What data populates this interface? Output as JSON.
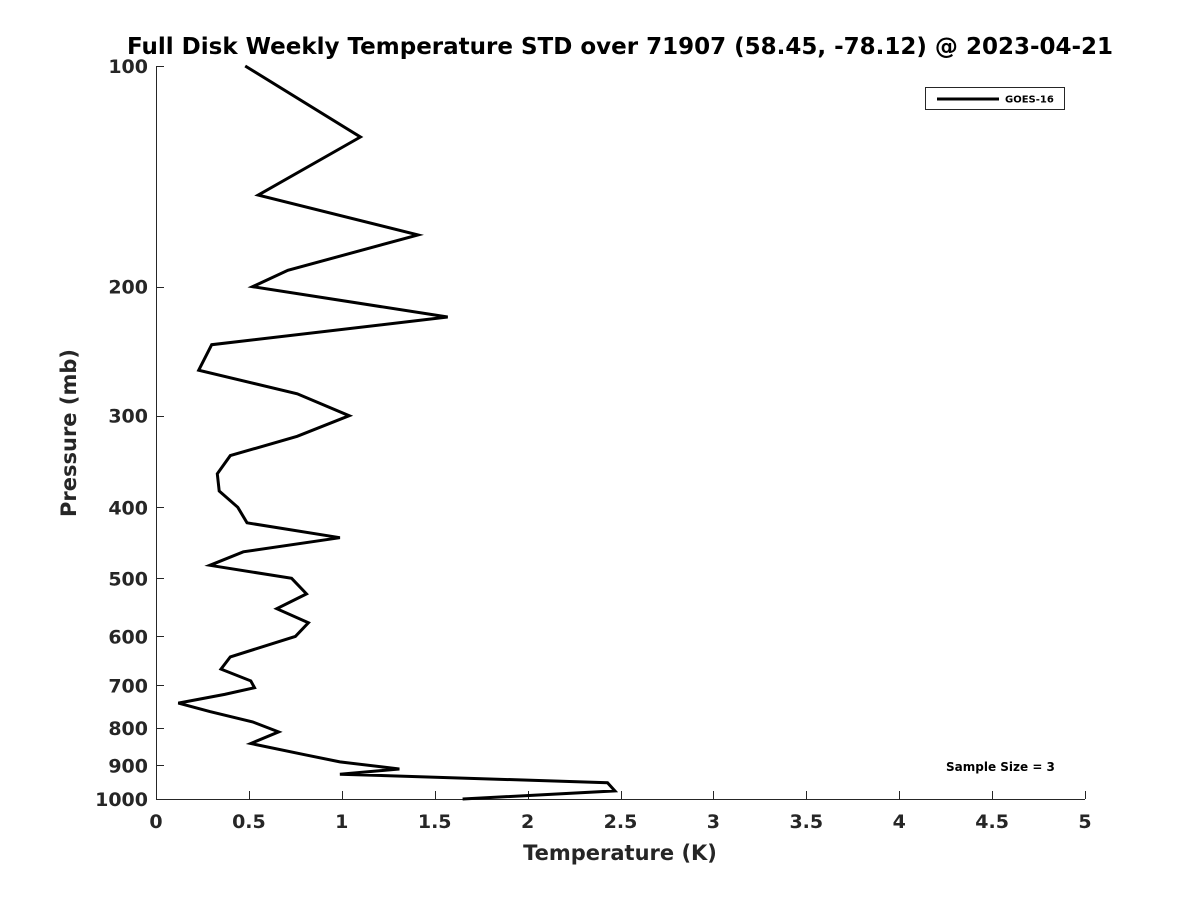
{
  "chart_data": {
    "type": "line",
    "title": "Full Disk Weekly Temperature STD over 71907 (58.45, -78.12) @ 2023-04-21",
    "xlabel": "Temperature (K)",
    "ylabel": "Pressure (mb)",
    "xlim": [
      0,
      5
    ],
    "ylim": [
      100,
      1000
    ],
    "y_scale": "log",
    "y_reversed": true,
    "x_ticks": [
      0,
      0.5,
      1,
      1.5,
      2,
      2.5,
      3,
      3.5,
      4,
      4.5,
      5
    ],
    "x_tick_labels": [
      "0",
      "0.5",
      "1",
      "1.5",
      "2",
      "2.5",
      "3",
      "3.5",
      "4",
      "4.5",
      "5"
    ],
    "y_ticks": [
      100,
      200,
      300,
      400,
      500,
      600,
      700,
      800,
      900,
      1000
    ],
    "y_tick_labels": [
      "100",
      "200",
      "300",
      "400",
      "500",
      "600",
      "700",
      "800",
      "900",
      "1000"
    ],
    "grid": false,
    "legend_position": "top-right",
    "series": [
      {
        "name": "GOES-16",
        "color": "#000000",
        "points": [
          [
            0.48,
            100
          ],
          [
            1.1,
            125
          ],
          [
            0.55,
            150
          ],
          [
            1.41,
            170
          ],
          [
            0.71,
            190
          ],
          [
            0.52,
            200
          ],
          [
            1.57,
            220
          ],
          [
            0.3,
            240
          ],
          [
            0.23,
            260
          ],
          [
            0.76,
            280
          ],
          [
            1.04,
            300
          ],
          [
            0.76,
            320
          ],
          [
            0.4,
            340
          ],
          [
            0.33,
            360
          ],
          [
            0.34,
            380
          ],
          [
            0.44,
            400
          ],
          [
            0.49,
            420
          ],
          [
            0.99,
            440
          ],
          [
            0.47,
            460
          ],
          [
            0.29,
            480
          ],
          [
            0.73,
            500
          ],
          [
            0.81,
            525
          ],
          [
            0.65,
            550
          ],
          [
            0.82,
            575
          ],
          [
            0.75,
            600
          ],
          [
            0.4,
            640
          ],
          [
            0.35,
            665
          ],
          [
            0.51,
            690
          ],
          [
            0.53,
            705
          ],
          [
            0.37,
            720
          ],
          [
            0.12,
            740
          ],
          [
            0.29,
            760
          ],
          [
            0.52,
            785
          ],
          [
            0.66,
            810
          ],
          [
            0.51,
            840
          ],
          [
            0.8,
            870
          ],
          [
            0.99,
            890
          ],
          [
            1.31,
            910
          ],
          [
            0.99,
            925
          ],
          [
            2.43,
            950
          ],
          [
            2.47,
            975
          ],
          [
            1.65,
            1000
          ]
        ]
      }
    ],
    "annotation": "Sample Size = 3"
  }
}
